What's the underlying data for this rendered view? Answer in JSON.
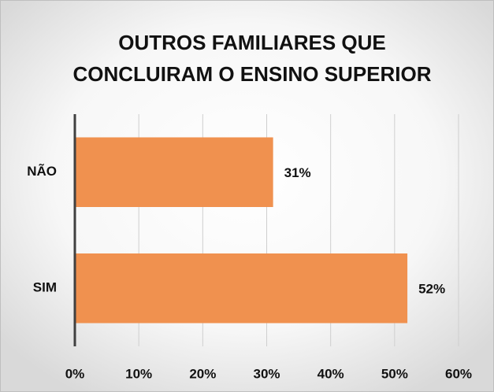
{
  "chart_data": {
    "type": "bar",
    "orientation": "horizontal",
    "title": [
      "OUTROS FAMILIARES QUE",
      "CONCLUIRAM O ENSINO SUPERIOR"
    ],
    "categories": [
      "NÃO",
      "SIM"
    ],
    "values": [
      31,
      52
    ],
    "value_labels": [
      "31%",
      "52%"
    ],
    "color": "#f0914f",
    "xlim": [
      0,
      60
    ],
    "xticks": [
      {
        "value": 0,
        "label": "0%"
      },
      {
        "value": 10,
        "label": "10%"
      },
      {
        "value": 20,
        "label": "20%"
      },
      {
        "value": 30,
        "label": "30%"
      },
      {
        "value": 40,
        "label": "40%"
      },
      {
        "value": 50,
        "label": "50%"
      },
      {
        "value": 60,
        "label": "60%"
      }
    ],
    "grid": true
  }
}
